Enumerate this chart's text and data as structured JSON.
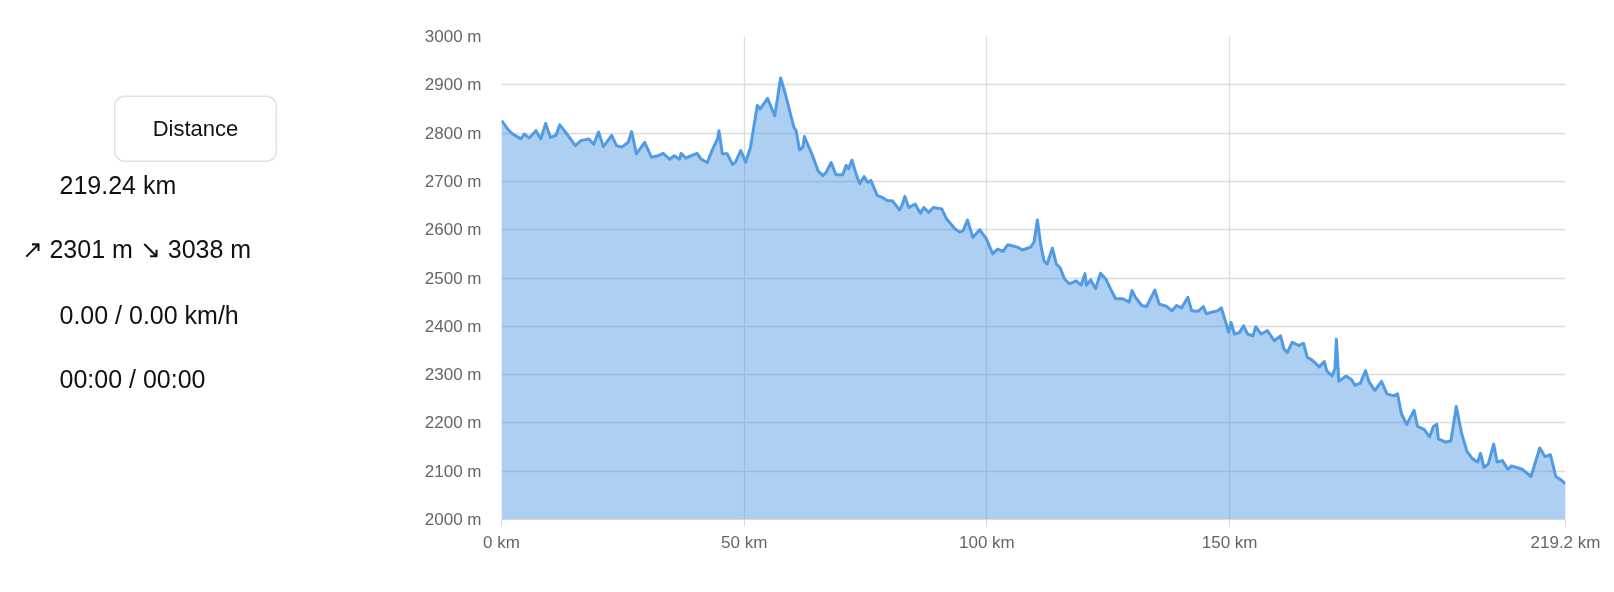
{
  "chart_data": [
    {
      "type": "other",
      "annotations": [
        "Distance",
        "219.24 km",
        "↗ 2301 m ↘ 3038 m",
        "0.00 / 0.00 km/h",
        "00:00 / 00:00"
      ]
    },
    {
      "type": "area",
      "x": [
        0,
        1.3,
        2.3,
        4.0,
        4.7,
        5.7,
        7.1,
        8.1,
        9.1,
        10.1,
        11.2,
        12.0,
        13.2,
        15.2,
        16.3,
        18.0,
        19.0,
        20.0,
        21.0,
        22.7,
        23.7,
        24.8,
        26.1,
        26.8,
        27.8,
        29.5,
        30.9,
        32.2,
        33.3,
        34.6,
        35.6,
        36.7,
        37.0,
        38.0,
        39.0,
        40.3,
        41.1,
        42.4,
        43.5,
        44.5,
        44.8,
        45.5,
        46.5,
        47.6,
        48.2,
        49.3,
        50.3,
        51.3,
        52.7,
        53.3,
        54.8,
        56.3,
        57.5,
        58.4,
        59.7,
        60.2,
        60.7,
        61.4,
        62.1,
        62.4,
        63.5,
        64.1,
        65.2,
        66.2,
        66.9,
        67.9,
        68.9,
        70.3,
        71.0,
        71.5,
        72.2,
        73.0,
        73.8,
        74.7,
        75.4,
        76.1,
        77.4,
        78.4,
        79.5,
        80.5,
        82.0,
        82.5,
        83.1,
        83.9,
        85.2,
        86.3,
        87.0,
        88.0,
        89.0,
        90.7,
        91.7,
        93.4,
        94.4,
        95.1,
        96.0,
        97.1,
        98.5,
        99.9,
        101.2,
        102.2,
        103.3,
        104.3,
        106.3,
        107.3,
        109.0,
        109.7,
        110.4,
        111.1,
        111.8,
        112.4,
        113.5,
        114.3,
        115.1,
        116.0,
        117.0,
        118.4,
        119.4,
        120.2,
        120.5,
        121.4,
        122.4,
        123.4,
        124.5,
        125.3,
        126.5,
        128.0,
        129.3,
        129.9,
        130.6,
        131.9,
        132.9,
        134.6,
        135.5,
        137.1,
        138.1,
        139.1,
        140.1,
        141.4,
        142.2,
        143.5,
        144.6,
        145.2,
        146.3,
        147.5,
        148.3,
        149.0,
        149.8,
        150.3,
        151.0,
        152.0,
        152.9,
        153.7,
        154.8,
        155.4,
        156.5,
        157.8,
        159.2,
        160.5,
        161.2,
        161.9,
        162.9,
        164.3,
        165.2,
        166.0,
        167.0,
        168.5,
        169.5,
        170.0,
        171.1,
        171.7,
        172.0,
        172.5,
        174.0,
        175.1,
        175.8,
        176.9,
        178.0,
        178.7,
        179.9,
        181.3,
        182.4,
        183.9,
        184.6,
        185.4,
        186.5,
        188.0,
        188.7,
        190.1,
        191.2,
        192.0,
        192.7,
        193.0,
        194.5,
        195.6,
        196.7,
        197.8,
        198.9,
        200.0,
        201.1,
        201.7,
        202.4,
        203.3,
        204.4,
        205.1,
        206.2,
        207.3,
        208.1,
        210.3,
        212.1,
        213.9,
        215.0,
        216.1,
        217.2,
        218.3,
        219.2
      ],
      "values": [
        2826,
        2808,
        2798,
        2788,
        2798,
        2790,
        2805,
        2788,
        2820,
        2791,
        2795,
        2817,
        2802,
        2774,
        2784,
        2788,
        2777,
        2802,
        2772,
        2795,
        2774,
        2771,
        2781,
        2803,
        2757,
        2781,
        2750,
        2753,
        2758,
        2746,
        2753,
        2746,
        2758,
        2748,
        2753,
        2758,
        2746,
        2739,
        2767,
        2788,
        2805,
        2757,
        2757,
        2735,
        2740,
        2764,
        2740,
        2771,
        2857,
        2850,
        2872,
        2836,
        2914,
        2884,
        2833,
        2813,
        2805,
        2765,
        2771,
        2793,
        2767,
        2753,
        2722,
        2712,
        2719,
        2739,
        2714,
        2714,
        2733,
        2726,
        2744,
        2717,
        2695,
        2710,
        2698,
        2702,
        2671,
        2667,
        2660,
        2660,
        2641,
        2650,
        2669,
        2646,
        2653,
        2634,
        2646,
        2636,
        2646,
        2643,
        2622,
        2602,
        2595,
        2598,
        2620,
        2584,
        2600,
        2581,
        2550,
        2560,
        2555,
        2569,
        2564,
        2558,
        2564,
        2574,
        2620,
        2568,
        2535,
        2529,
        2562,
        2529,
        2521,
        2498,
        2488,
        2494,
        2485,
        2509,
        2485,
        2496,
        2478,
        2510,
        2498,
        2481,
        2457,
        2457,
        2450,
        2474,
        2460,
        2443,
        2441,
        2475,
        2446,
        2441,
        2432,
        2443,
        2438,
        2460,
        2432,
        2431,
        2441,
        2426,
        2429,
        2432,
        2438,
        2415,
        2388,
        2408,
        2384,
        2387,
        2401,
        2384,
        2380,
        2399,
        2384,
        2391,
        2370,
        2380,
        2353,
        2346,
        2367,
        2360,
        2365,
        2336,
        2330,
        2316,
        2327,
        2308,
        2297,
        2312,
        2373,
        2286,
        2297,
        2290,
        2278,
        2282,
        2308,
        2286,
        2267,
        2286,
        2260,
        2256,
        2260,
        2219,
        2197,
        2226,
        2193,
        2186,
        2171,
        2193,
        2197,
        2167,
        2160,
        2163,
        2234,
        2178,
        2141,
        2126,
        2119,
        2137,
        2108,
        2115,
        2156,
        2119,
        2122,
        2104,
        2111,
        2104,
        2089,
        2148,
        2130,
        2134,
        2089,
        2082,
        2074
      ],
      "color": "#509be3",
      "xlim": [
        0,
        219.2
      ],
      "xticks": [
        {
          "value": 0,
          "label": "0 km"
        },
        {
          "value": 50,
          "label": "50 km"
        },
        {
          "value": 100,
          "label": "100 km"
        },
        {
          "value": 150,
          "label": "150 km"
        },
        {
          "value": 219.2,
          "label": "219.2 km"
        }
      ],
      "ylim": [
        2000,
        3000
      ],
      "yticks": [
        {
          "value": 2000,
          "label": "2000 m"
        },
        {
          "value": 2100,
          "label": "2100 m"
        },
        {
          "value": 2200,
          "label": "2200 m"
        },
        {
          "value": 2300,
          "label": "2300 m"
        },
        {
          "value": 2400,
          "label": "2400 m"
        },
        {
          "value": 2500,
          "label": "2500 m"
        },
        {
          "value": 2600,
          "label": "2600 m"
        },
        {
          "value": 2700,
          "label": "2700 m"
        },
        {
          "value": 2800,
          "label": "2800 m"
        },
        {
          "value": 2900,
          "label": "2900 m"
        },
        {
          "value": 3000,
          "label": "3000 m"
        }
      ],
      "grid": true
    }
  ]
}
